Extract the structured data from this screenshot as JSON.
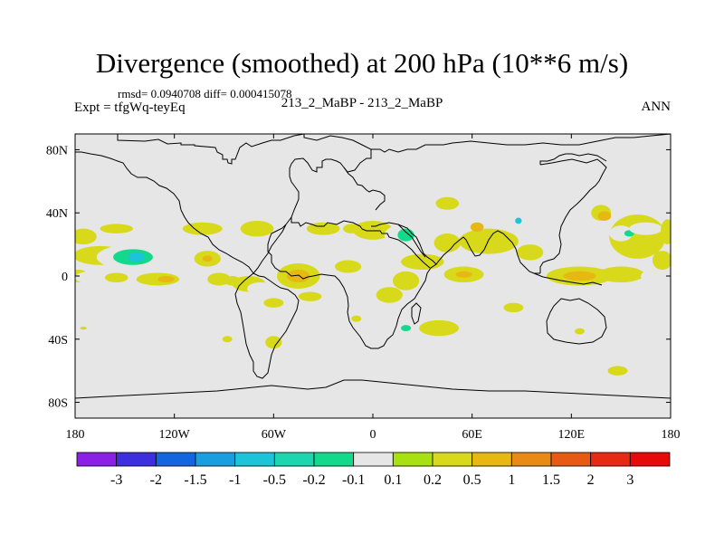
{
  "title": "Divergence (smoothed) at 200 hPa (10**6 m/s)",
  "stats": "rmsd= 0.0940708 diff= 0.000415078",
  "left_label": "Expt = tfgWq-teyEq",
  "center_label": "213_2_MaBP - 213_2_MaBP",
  "right_label": "ANN",
  "chart_data": {
    "type": "heatmap",
    "projection": "cylindrical-equidistant",
    "xlim": [
      -180,
      180
    ],
    "ylim": [
      -90,
      90
    ],
    "x_ticks": [
      {
        "value": -180,
        "label": "180"
      },
      {
        "value": -120,
        "label": "120W"
      },
      {
        "value": -60,
        "label": "60W"
      },
      {
        "value": 0,
        "label": "0"
      },
      {
        "value": 60,
        "label": "60E"
      },
      {
        "value": 120,
        "label": "120E"
      },
      {
        "value": 180,
        "label": "180"
      }
    ],
    "y_ticks": [
      {
        "value": 80,
        "label": "80N"
      },
      {
        "value": 40,
        "label": "40N"
      },
      {
        "value": 0,
        "label": "0"
      },
      {
        "value": -40,
        "label": "40S"
      },
      {
        "value": -80,
        "label": "80S"
      }
    ],
    "levels": [
      "-3",
      "-2",
      "-1.5",
      "-1",
      "-0.5",
      "-0.2",
      "-0.1",
      "0.1",
      "0.2",
      "0.5",
      "1",
      "1.5",
      "2",
      "3"
    ],
    "colors": [
      "#8c1fe6",
      "#3d2fe0",
      "#1466e0",
      "#1a9ee0",
      "#1cc4d9",
      "#1cd6b0",
      "#12d98c",
      "#e6e6e6",
      "#a9e012",
      "#d7d91a",
      "#e8b812",
      "#e88a14",
      "#e65a14",
      "#e62a14",
      "#e60a0a"
    ],
    "background_color": "#e6e6e6",
    "blobs": [
      {
        "lon": -175,
        "lat": 25,
        "rx": 8,
        "ry": 5,
        "level": "0.2"
      },
      {
        "lon": -165,
        "lat": 13,
        "rx": 16,
        "ry": 6,
        "level": "0.2"
      },
      {
        "lon": -145,
        "lat": 12,
        "rx": 22,
        "ry": 8,
        "level": "-0.1"
      },
      {
        "lon": -145,
        "lat": 12,
        "rx": 12,
        "ry": 5,
        "level": "-0.2"
      },
      {
        "lon": -143,
        "lat": 12,
        "rx": 5,
        "ry": 3,
        "level": "-1"
      },
      {
        "lon": -155,
        "lat": 30,
        "rx": 10,
        "ry": 3,
        "level": "0.2"
      },
      {
        "lon": -178,
        "lat": 0,
        "rx": 6,
        "ry": 4,
        "level": "0.2"
      },
      {
        "lon": -170,
        "lat": -1,
        "rx": 10,
        "ry": 4,
        "level": "-0.1"
      },
      {
        "lon": -155,
        "lat": -1,
        "rx": 7,
        "ry": 3,
        "level": "0.2"
      },
      {
        "lon": -130,
        "lat": -2,
        "rx": 13,
        "ry": 4,
        "level": "0.2"
      },
      {
        "lon": -125,
        "lat": -2,
        "rx": 5,
        "ry": 2,
        "level": "0.5"
      },
      {
        "lon": -160,
        "lat": -14,
        "rx": 20,
        "ry": 5,
        "level": "-0.1"
      },
      {
        "lon": -120,
        "lat": -15,
        "rx": 15,
        "ry": 5,
        "level": "-0.1"
      },
      {
        "lon": -107,
        "lat": -3,
        "rx": 5,
        "ry": 3,
        "level": "-0.1"
      },
      {
        "lon": -100,
        "lat": 11,
        "rx": 8,
        "ry": 5,
        "level": "0.2"
      },
      {
        "lon": -100,
        "lat": 11,
        "rx": 3,
        "ry": 2,
        "level": "0.5"
      },
      {
        "lon": -103,
        "lat": 30,
        "rx": 12,
        "ry": 4,
        "level": "0.2"
      },
      {
        "lon": -70,
        "lat": 30,
        "rx": 10,
        "ry": 5,
        "level": "0.2"
      },
      {
        "lon": -75,
        "lat": 14,
        "rx": 10,
        "ry": 4,
        "level": "-0.1"
      },
      {
        "lon": -93,
        "lat": -2,
        "rx": 7,
        "ry": 4,
        "level": "0.2"
      },
      {
        "lon": -85,
        "lat": -3,
        "rx": 5,
        "ry": 3,
        "level": "0.2"
      },
      {
        "lon": -75,
        "lat": -5,
        "rx": 10,
        "ry": 5,
        "level": "0.2"
      },
      {
        "lon": -68,
        "lat": -8,
        "rx": 8,
        "ry": 4,
        "level": "-0.1"
      },
      {
        "lon": -55,
        "lat": 13,
        "rx": 10,
        "ry": 4,
        "level": "-0.1"
      },
      {
        "lon": -45,
        "lat": 0,
        "rx": 13,
        "ry": 8,
        "level": "0.2"
      },
      {
        "lon": -45,
        "lat": 0,
        "rx": 7,
        "ry": 4,
        "level": "0.5"
      },
      {
        "lon": -30,
        "lat": 30,
        "rx": 10,
        "ry": 4,
        "level": "0.2"
      },
      {
        "lon": -15,
        "lat": 6,
        "rx": 8,
        "ry": 4,
        "level": "0.2"
      },
      {
        "lon": -5,
        "lat": -1,
        "rx": 4,
        "ry": 3,
        "level": "-0.1"
      },
      {
        "lon": -60,
        "lat": -17,
        "rx": 6,
        "ry": 3,
        "level": "0.2"
      },
      {
        "lon": -38,
        "lat": -13,
        "rx": 7,
        "ry": 3,
        "level": "0.2"
      },
      {
        "lon": -10,
        "lat": -27,
        "rx": 3,
        "ry": 2,
        "level": "0.2"
      },
      {
        "lon": -60,
        "lat": -42,
        "rx": 5,
        "ry": 4,
        "level": "0.2"
      },
      {
        "lon": -88,
        "lat": -40,
        "rx": 3,
        "ry": 2,
        "level": "0.2"
      },
      {
        "lon": -13,
        "lat": 30,
        "rx": 5,
        "ry": 3,
        "level": "0.2"
      },
      {
        "lon": 0,
        "lat": 29,
        "rx": 12,
        "ry": 6,
        "level": "0.2"
      },
      {
        "lon": 20,
        "lat": 26,
        "rx": 13,
        "ry": 7,
        "level": "-0.1"
      },
      {
        "lon": 20,
        "lat": 26,
        "rx": 5,
        "ry": 4,
        "level": "-0.2"
      },
      {
        "lon": 45,
        "lat": 21,
        "rx": 8,
        "ry": 6,
        "level": "0.2"
      },
      {
        "lon": 70,
        "lat": 22,
        "rx": 18,
        "ry": 8,
        "level": "0.2"
      },
      {
        "lon": 63,
        "lat": 31,
        "rx": 4,
        "ry": 3,
        "level": "0.5"
      },
      {
        "lon": 85,
        "lat": 32,
        "rx": 6,
        "ry": 5,
        "level": "-0.1"
      },
      {
        "lon": 88,
        "lat": 35,
        "rx": 2,
        "ry": 2,
        "level": "-1"
      },
      {
        "lon": 45,
        "lat": 46,
        "rx": 7,
        "ry": 4,
        "level": "0.2"
      },
      {
        "lon": 30,
        "lat": 9,
        "rx": 13,
        "ry": 5,
        "level": "0.2"
      },
      {
        "lon": 20,
        "lat": -3,
        "rx": 8,
        "ry": 6,
        "level": "0.2"
      },
      {
        "lon": 10,
        "lat": -12,
        "rx": 8,
        "ry": 5,
        "level": "0.2"
      },
      {
        "lon": 55,
        "lat": 1,
        "rx": 12,
        "ry": 5,
        "level": "0.2"
      },
      {
        "lon": 55,
        "lat": 1,
        "rx": 5,
        "ry": 2,
        "level": "0.5"
      },
      {
        "lon": 60,
        "lat": -9,
        "rx": 12,
        "ry": 3,
        "level": "-0.1"
      },
      {
        "lon": 40,
        "lat": -12,
        "rx": 12,
        "ry": 4,
        "level": "-0.1"
      },
      {
        "lon": 68,
        "lat": -12,
        "rx": 6,
        "ry": 4,
        "level": "-0.1"
      },
      {
        "lon": 95,
        "lat": 15,
        "rx": 8,
        "ry": 5,
        "level": "0.2"
      },
      {
        "lon": 100,
        "lat": 0,
        "rx": 10,
        "ry": 5,
        "level": "-0.1"
      },
      {
        "lon": 95,
        "lat": -14,
        "rx": 15,
        "ry": 6,
        "level": "-0.1"
      },
      {
        "lon": 85,
        "lat": -20,
        "rx": 6,
        "ry": 3,
        "level": "0.2"
      },
      {
        "lon": 115,
        "lat": -12,
        "rx": 8,
        "ry": 4,
        "level": "-0.1"
      },
      {
        "lon": 125,
        "lat": 0,
        "rx": 20,
        "ry": 6,
        "level": "0.2"
      },
      {
        "lon": 125,
        "lat": 0,
        "rx": 10,
        "ry": 3,
        "level": "0.5"
      },
      {
        "lon": 150,
        "lat": 1,
        "rx": 14,
        "ry": 5,
        "level": "0.2"
      },
      {
        "lon": 160,
        "lat": -10,
        "rx": 20,
        "ry": 6,
        "level": "-0.1"
      },
      {
        "lon": 170,
        "lat": 0,
        "rx": 8,
        "ry": 4,
        "level": "-0.1"
      },
      {
        "lon": 175,
        "lat": 10,
        "rx": 6,
        "ry": 6,
        "level": "0.2"
      },
      {
        "lon": 135,
        "lat": 45,
        "rx": 10,
        "ry": 9,
        "level": "-0.1"
      },
      {
        "lon": 138,
        "lat": 40,
        "rx": 6,
        "ry": 5,
        "level": "0.2"
      },
      {
        "lon": 140,
        "lat": 38,
        "rx": 4,
        "ry": 3,
        "level": "0.5"
      },
      {
        "lon": 160,
        "lat": 25,
        "rx": 17,
        "ry": 14,
        "level": "0.2"
      },
      {
        "lon": 150,
        "lat": 27,
        "rx": 7,
        "ry": 5,
        "level": "-0.1"
      },
      {
        "lon": 155,
        "lat": 27,
        "rx": 3,
        "ry": 2,
        "level": "-0.2"
      },
      {
        "lon": 165,
        "lat": 30,
        "rx": 10,
        "ry": 4,
        "level": "-0.1"
      },
      {
        "lon": 178,
        "lat": 28,
        "rx": 4,
        "ry": 8,
        "level": "0.2"
      },
      {
        "lon": 15,
        "lat": -30,
        "rx": 8,
        "ry": 5,
        "level": "-0.1"
      },
      {
        "lon": 20,
        "lat": -33,
        "rx": 3,
        "ry": 2,
        "level": "-0.2"
      },
      {
        "lon": 40,
        "lat": -33,
        "rx": 12,
        "ry": 5,
        "level": "0.2"
      },
      {
        "lon": 15,
        "lat": -63,
        "rx": 6,
        "ry": 3,
        "level": "-0.1"
      },
      {
        "lon": 148,
        "lat": -60,
        "rx": 6,
        "ry": 3,
        "level": "0.2"
      },
      {
        "lon": 125,
        "lat": -35,
        "rx": 3,
        "ry": 2,
        "level": "0.2"
      },
      {
        "lon": -175,
        "lat": -33,
        "rx": 2,
        "ry": 1,
        "level": "0.2"
      },
      {
        "lon": 3,
        "lat": 60,
        "rx": 1,
        "ry": 1,
        "level": "-0.1"
      }
    ]
  }
}
